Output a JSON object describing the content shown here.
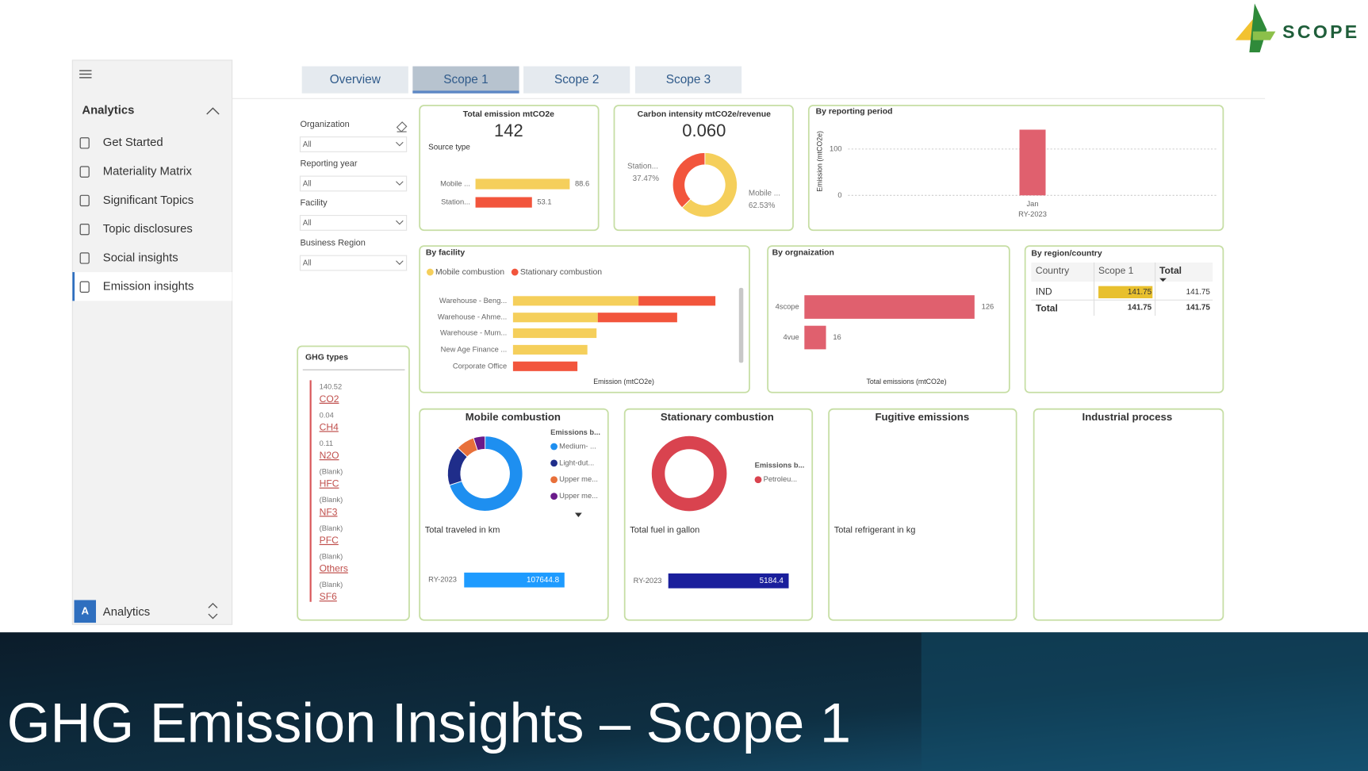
{
  "logo": {
    "text": "SCOPE"
  },
  "sidebar": {
    "section": "Analytics",
    "items": [
      "Get Started",
      "Materiality Matrix",
      "Significant Topics",
      "Topic disclosures",
      "Social insights",
      "Emission insights"
    ],
    "active": 5,
    "workspace_avatar": "A",
    "workspace": "Analytics"
  },
  "tabs": {
    "items": [
      "Overview",
      "Scope 1",
      "Scope 2",
      "Scope 3"
    ],
    "active": 1
  },
  "filters": [
    {
      "label": "Organization",
      "value": "All"
    },
    {
      "label": "Reporting year",
      "value": "All"
    },
    {
      "label": "Facility",
      "value": "All"
    },
    {
      "label": "Business Region",
      "value": "All"
    }
  ],
  "ghg_types": {
    "title": "GHG types",
    "items": [
      {
        "value": "140.52",
        "name": "CO2"
      },
      {
        "value": "0.04",
        "name": "CH4"
      },
      {
        "value": "0.11",
        "name": "N2O"
      },
      {
        "value": "(Blank)",
        "name": "HFC"
      },
      {
        "value": "(Blank)",
        "name": "NF3"
      },
      {
        "value": "(Blank)",
        "name": "PFC"
      },
      {
        "value": "(Blank)",
        "name": "Others"
      },
      {
        "value": "(Blank)",
        "name": "SF6"
      }
    ]
  },
  "region_table": {
    "title": "By region/country",
    "columns": [
      "Country",
      "Scope 1",
      "Total"
    ],
    "rows": [
      [
        "IND",
        "141.75",
        "141.75"
      ]
    ],
    "total": [
      "Total",
      "141.75",
      "141.75"
    ]
  },
  "chart_data": [
    {
      "type": "bar",
      "title": "Total emission mtCO2e",
      "kpi": 142,
      "subtitle": "Source type",
      "categories": [
        "Mobile ...",
        "Station..."
      ],
      "values": [
        88.6,
        53.1
      ],
      "colors": [
        "#f5cf5b",
        "#f2553c"
      ]
    },
    {
      "type": "donut",
      "title": "Carbon intensity mtCO2e/revenue",
      "kpi": "0.060",
      "categories": [
        "Station...",
        "Mobile ..."
      ],
      "values": [
        37.47,
        62.53
      ],
      "value_labels": [
        "37.47%",
        "62.53%"
      ],
      "colors": [
        "#f2553c",
        "#f5cf5b"
      ]
    },
    {
      "type": "column",
      "title": "By reporting period",
      "ylabel": "Emission (mtCO2e)",
      "categories": [
        "Jan"
      ],
      "category_groups": [
        "RY-2023"
      ],
      "values": [
        141.75
      ],
      "color": "#e0606e",
      "ylim": [
        0,
        175
      ],
      "yticks": [
        0,
        100
      ],
      "grid": true
    },
    {
      "type": "stacked_bar",
      "title": "By facility",
      "xlabel": "Emission (mtCO2e)",
      "categories": [
        "Warehouse - Beng...",
        "Warehouse - Ahme...",
        "Warehouse - Mum...",
        "New Age Finance ...",
        "Corporate Office"
      ],
      "series": [
        {
          "name": "Mobile combustion",
          "color": "#f5cf5b",
          "values": [
            30.2,
            20.4,
            20.1,
            17.9,
            0
          ]
        },
        {
          "name": "Stationary combustion",
          "color": "#f2553c",
          "values": [
            18.5,
            19.1,
            0,
            0,
            15.5
          ]
        }
      ]
    },
    {
      "type": "bar",
      "title": "By orgnaization",
      "xlabel": "Total emissions (mtCO2e)",
      "categories": [
        "4scope",
        "4vue"
      ],
      "values": [
        126,
        16
      ],
      "color": "#e0606e"
    },
    {
      "type": "donut",
      "title": "Mobile combustion",
      "legend_title": "Emissions b...",
      "categories": [
        "Medium- ...",
        "Light-dut...",
        "Upper me...",
        "Upper me..."
      ],
      "values": [
        70,
        17,
        8,
        5
      ],
      "colors": [
        "#1e8ff0",
        "#1f2d8a",
        "#e8703a",
        "#6a1b8a"
      ]
    },
    {
      "type": "bar",
      "title": "Total traveled in km",
      "categories": [
        "RY-2023"
      ],
      "values": [
        107644.8
      ],
      "color": "#1e9bff"
    },
    {
      "type": "donut",
      "title": "Stationary combustion",
      "legend_title": "Emissions b...",
      "categories": [
        "Petroleu..."
      ],
      "values": [
        100
      ],
      "colors": [
        "#d9434f"
      ]
    },
    {
      "type": "bar",
      "title": "Total fuel in gallon",
      "categories": [
        "RY-2023"
      ],
      "values": [
        5184.4
      ],
      "color": "#1a1f9c"
    }
  ],
  "empty_cards": [
    {
      "title": "Fugitive emissions",
      "subtitle": "Total refrigerant in kg"
    },
    {
      "title": "Industrial process"
    }
  ],
  "slide_title": "GHG Emission Insights – Scope 1"
}
